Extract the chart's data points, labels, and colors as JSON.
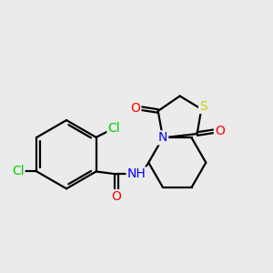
{
  "background_color": "#ebebeb",
  "atom_colors": {
    "C": "#000000",
    "H": "#000000",
    "N": "#0000ff",
    "O": "#ff0000",
    "S": "#cccc00",
    "Cl": "#00cc00"
  },
  "bond_color": "#000000",
  "bond_width": 1.6,
  "font_size": 10
}
